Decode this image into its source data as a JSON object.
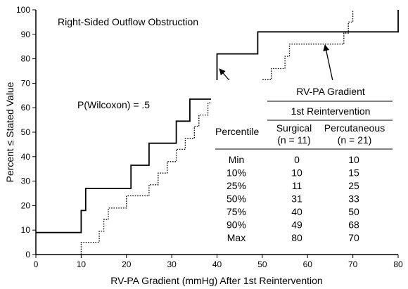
{
  "chart_data": {
    "type": "line",
    "title": "Right-Sided Outflow Obstruction",
    "xlabel": "RV-PA Gradient (mmHg) After 1st Reintervention",
    "ylabel": "Percent ≤ Stated Value",
    "xlim": [
      0,
      80
    ],
    "ylim": [
      0,
      100
    ],
    "xticks": [
      0,
      10,
      20,
      30,
      40,
      50,
      60,
      70,
      80
    ],
    "yticks": [
      0,
      10,
      20,
      30,
      40,
      50,
      60,
      70,
      80,
      90,
      100
    ],
    "grid": false,
    "annotation": "P(Wilcoxon) = .5",
    "series": [
      {
        "label_in_table": "Surgical",
        "style": "solid",
        "x": [
          0,
          10,
          10,
          11,
          11,
          21,
          21,
          25,
          25,
          31,
          31,
          34,
          34,
          35,
          35,
          40,
          40,
          49,
          49,
          80,
          80
        ],
        "y": [
          9,
          9,
          18,
          18,
          27,
          27,
          36.5,
          36.5,
          45.5,
          45.5,
          54.5,
          54.5,
          63.5,
          63.5,
          63.5,
          63.5,
          82,
          82,
          91,
          91,
          100
        ]
      },
      {
        "label_in_table": "Percutaneous",
        "style": "dotted",
        "x": [
          10,
          10,
          14,
          14,
          15,
          15,
          16,
          16,
          20,
          20,
          25,
          25,
          27,
          27,
          29,
          29,
          31,
          31,
          33,
          33,
          35,
          35,
          36,
          36,
          38,
          38,
          40,
          40,
          50,
          50,
          52,
          52,
          55,
          55,
          56,
          56,
          68,
          68,
          69,
          69,
          70,
          70
        ],
        "y": [
          0,
          5,
          5,
          9.5,
          9.5,
          14.3,
          14.3,
          19,
          19,
          24,
          24,
          28.5,
          28.5,
          33.3,
          33.3,
          38,
          38,
          43,
          43,
          47.5,
          47.5,
          52.4,
          52.4,
          57,
          57,
          62,
          62,
          67,
          67,
          71.5,
          71.5,
          76,
          76,
          81,
          81,
          86,
          86,
          90.5,
          90.5,
          95,
          95,
          100
        ]
      }
    ],
    "table": {
      "header_top": "RV-PA Gradient",
      "header_sub": "1st Reintervention",
      "col_row": "Percentile",
      "col_a": "Surgical",
      "col_a_n": "(n = 11)",
      "col_b": "Percutaneous",
      "col_b_n": "(n = 21)",
      "rows": [
        {
          "p": "Min",
          "a": "0",
          "b": "10"
        },
        {
          "p": "10%",
          "a": "10",
          "b": "15"
        },
        {
          "p": "25%",
          "a": "11",
          "b": "25"
        },
        {
          "p": "50%",
          "a": "31",
          "b": "33"
        },
        {
          "p": "75%",
          "a": "40",
          "b": "50"
        },
        {
          "p": "90%",
          "a": "49",
          "b": "68"
        },
        {
          "p": "Max",
          "a": "80",
          "b": "70"
        }
      ]
    }
  }
}
